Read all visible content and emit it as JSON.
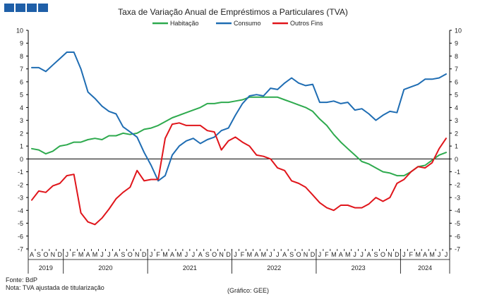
{
  "chart_data": {
    "type": "line",
    "title": "Taxa de Variação Anual de Empréstimos a Particulares (TVA)",
    "logo_color": "#1f5fa8",
    "ylim": [
      -7,
      10
    ],
    "yticks": [
      -7,
      -6,
      -5,
      -4,
      -3,
      -2,
      -1,
      0,
      1,
      2,
      3,
      4,
      5,
      6,
      7,
      8,
      9,
      10
    ],
    "legend_position": "top",
    "grid": false,
    "months": [
      "A",
      "S",
      "O",
      "N",
      "D",
      "J",
      "F",
      "M",
      "A",
      "M",
      "J",
      "J",
      "A",
      "S",
      "O",
      "N",
      "D",
      "J",
      "F",
      "M",
      "A",
      "M",
      "J",
      "J",
      "A",
      "S",
      "O",
      "N",
      "D",
      "J",
      "F",
      "M",
      "A",
      "M",
      "J",
      "J",
      "A",
      "S",
      "O",
      "N",
      "D",
      "J",
      "F",
      "M",
      "A",
      "M",
      "J",
      "J",
      "A",
      "S",
      "O",
      "N",
      "D",
      "J",
      "F",
      "M",
      "A",
      "M",
      "J",
      "J"
    ],
    "years": [
      {
        "label": "2019",
        "start": 0,
        "end": 5
      },
      {
        "label": "2020",
        "start": 5,
        "end": 17
      },
      {
        "label": "2021",
        "start": 17,
        "end": 29
      },
      {
        "label": "2022",
        "start": 29,
        "end": 41
      },
      {
        "label": "2023",
        "start": 41,
        "end": 53
      },
      {
        "label": "2024",
        "start": 53,
        "end": 60
      }
    ],
    "series": [
      {
        "name": "Habitação",
        "color": "#2eaa4e",
        "values": [
          0.8,
          0.7,
          0.4,
          0.6,
          1.0,
          1.1,
          1.3,
          1.3,
          1.5,
          1.6,
          1.5,
          1.8,
          1.8,
          2.0,
          1.9,
          2.0,
          2.3,
          2.4,
          2.6,
          2.9,
          3.2,
          3.4,
          3.6,
          3.8,
          4.0,
          4.3,
          4.3,
          4.4,
          4.4,
          4.5,
          4.6,
          4.8,
          4.8,
          4.8,
          4.8,
          4.8,
          4.6,
          4.4,
          4.2,
          4.0,
          3.7,
          3.1,
          2.6,
          1.9,
          1.3,
          0.8,
          0.3,
          -0.2,
          -0.4,
          -0.7,
          -1.0,
          -1.1,
          -1.3,
          -1.3,
          -1.0,
          -0.6,
          -0.5,
          -0.1,
          0.3,
          0.5
        ]
      },
      {
        "name": "Consumo",
        "color": "#1f6db3",
        "values": [
          7.1,
          7.1,
          6.8,
          7.3,
          7.8,
          8.3,
          8.3,
          7.0,
          5.2,
          4.7,
          4.1,
          3.7,
          3.5,
          2.5,
          2.1,
          1.7,
          0.5,
          -0.5,
          -1.7,
          -1.3,
          0.3,
          1.0,
          1.4,
          1.6,
          1.2,
          1.5,
          1.7,
          2.2,
          2.4,
          3.4,
          4.3,
          4.9,
          5.0,
          4.9,
          5.5,
          5.4,
          5.9,
          6.3,
          5.9,
          5.7,
          5.8,
          4.4,
          4.4,
          4.5,
          4.3,
          4.4,
          3.8,
          3.9,
          3.5,
          3.0,
          3.4,
          3.7,
          3.6,
          5.4,
          5.6,
          5.8,
          6.2,
          6.2,
          6.3,
          6.6
        ]
      },
      {
        "name": "Outros Fins",
        "color": "#e0151b",
        "values": [
          -3.2,
          -2.5,
          -2.6,
          -2.1,
          -1.9,
          -1.3,
          -1.2,
          -4.2,
          -4.9,
          -5.1,
          -4.6,
          -3.9,
          -3.1,
          -2.6,
          -2.2,
          -0.9,
          -1.7,
          -1.6,
          -1.6,
          1.6,
          2.7,
          2.8,
          2.6,
          2.6,
          2.6,
          2.2,
          2.1,
          0.7,
          1.4,
          1.7,
          1.3,
          1.0,
          0.3,
          0.2,
          0.0,
          -0.7,
          -0.9,
          -1.7,
          -1.9,
          -2.2,
          -2.8,
          -3.4,
          -3.8,
          -4.0,
          -3.6,
          -3.6,
          -3.8,
          -3.8,
          -3.5,
          -3.0,
          -3.3,
          -3.0,
          -1.9,
          -1.6,
          -1.0,
          -0.6,
          -0.7,
          -0.3,
          0.8,
          1.6
        ]
      }
    ]
  },
  "footer": {
    "source": "Fonte: BdP",
    "note": "Nota: TVA ajustada de titularização",
    "credit": "(Gráfico: GEE)"
  }
}
